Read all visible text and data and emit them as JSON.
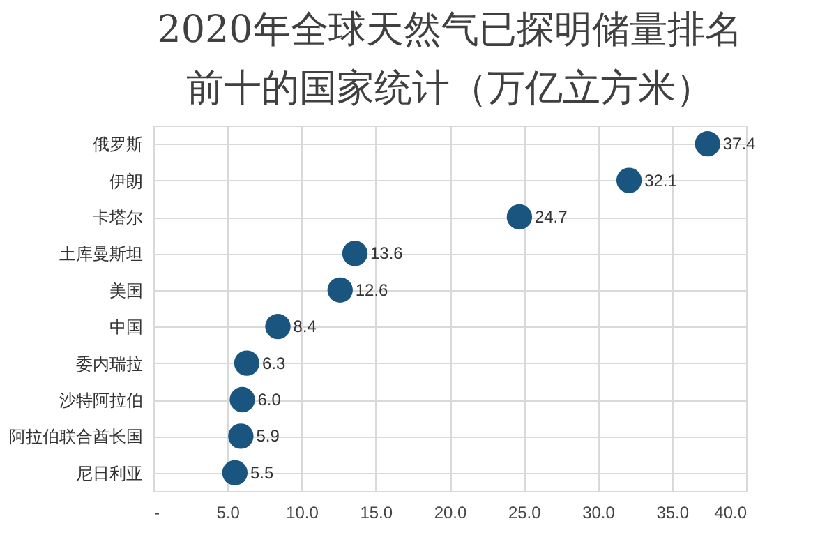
{
  "chart_data": {
    "type": "scatter",
    "orientation": "horizontal",
    "title": "2020年全球天然气已探明储量排名前十的国家统计（万亿立方米）",
    "categories": [
      "俄罗斯",
      "伊朗",
      "卡塔尔",
      "土库曼斯坦",
      "美国",
      "中国",
      "委内瑞拉",
      "沙特阿拉伯",
      "阿拉伯联合酋长国",
      "尼日利亚"
    ],
    "series": [
      {
        "color": "#1a5580",
        "values": [
          37.4,
          32.1,
          24.7,
          13.6,
          12.6,
          8.4,
          6.3,
          6.0,
          5.9,
          5.5
        ],
        "value_labels": [
          "37.4",
          "32.1",
          "24.7",
          "13.6",
          "12.6",
          "8.4",
          "6.3",
          "6.0",
          "5.9",
          "5.5"
        ]
      }
    ],
    "xlim": [
      0,
      40
    ],
    "xticks": [
      {
        "value": 0,
        "label": "-"
      },
      {
        "value": 5,
        "label": "5.0"
      },
      {
        "value": 10,
        "label": "10.0"
      },
      {
        "value": 15,
        "label": "15.0"
      },
      {
        "value": 20,
        "label": "20.0"
      },
      {
        "value": 25,
        "label": "25.0"
      },
      {
        "value": 30,
        "label": "30.0"
      },
      {
        "value": 35,
        "label": "35.0"
      },
      {
        "value": 40,
        "label": "40.0"
      }
    ],
    "grid": true,
    "marker": "circle",
    "legend": false
  }
}
